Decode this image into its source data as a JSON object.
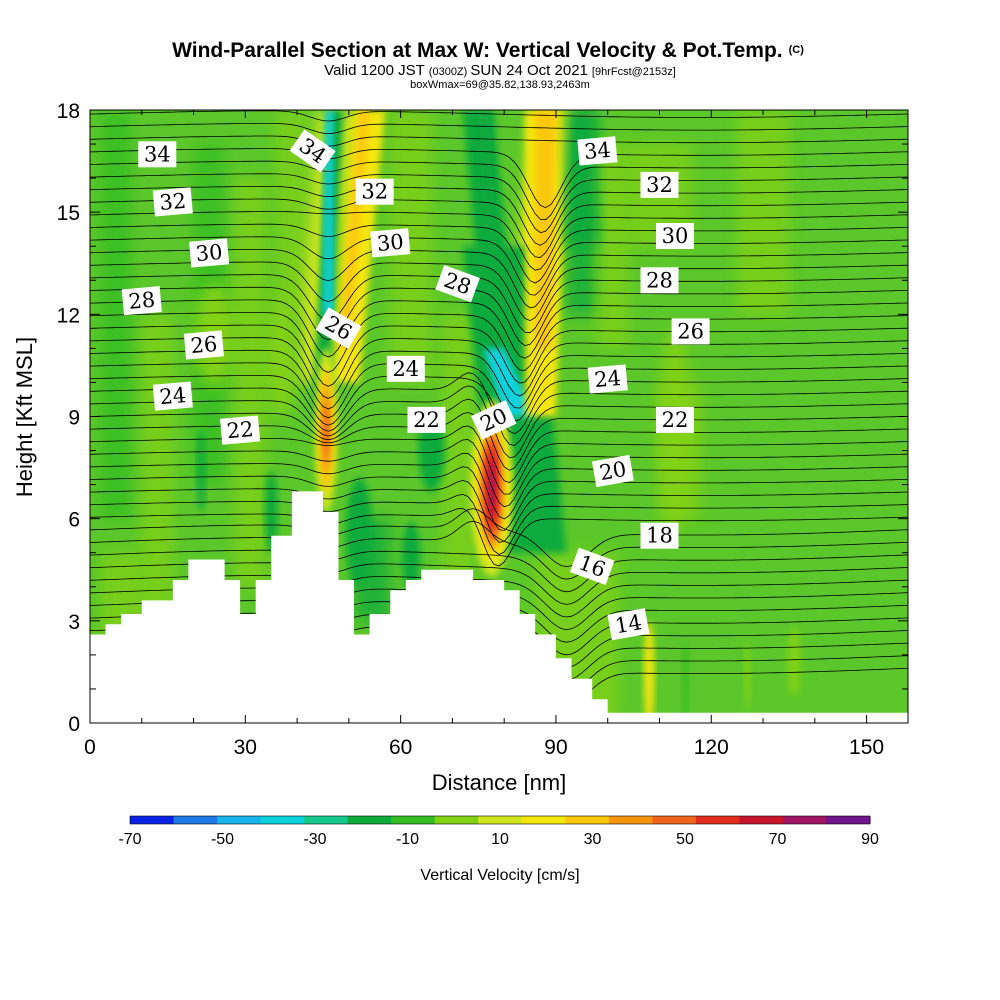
{
  "header": {
    "title": "Wind-Parallel Section at Max W: Vertical Velocity & Pot.Temp.",
    "title_suffix": "(C)",
    "subtitle_prefix": "Valid 1200 JST",
    "subtitle_zulu": "(0300Z)",
    "subtitle_date": "SUN 24 Oct 2021",
    "subtitle_fcst": "[9hrFcst@2153z]",
    "subtitle_box": "boxWmax=69@35.82,138.93,2463m"
  },
  "chart_data": {
    "type": "heatmap",
    "title": "Wind-Parallel Section at Max W: Vertical Velocity & Pot.Temp.",
    "xlabel": "Distance [nm]",
    "ylabel": "Height [Kft MSL]",
    "xlim": [
      0,
      158
    ],
    "ylim": [
      0,
      18
    ],
    "x_ticks": [
      0,
      30,
      60,
      90,
      120,
      150
    ],
    "y_ticks": [
      0,
      3,
      6,
      9,
      12,
      15,
      18
    ],
    "fill_variable": "Vertical Velocity [cm/s]",
    "contour_variable": "Potential temperature (C)",
    "colorbar": {
      "title": "Vertical Velocity [cm/s]",
      "bins": [
        -70,
        -60,
        -50,
        -40,
        -30,
        -20,
        -10,
        0,
        10,
        20,
        30,
        40,
        50,
        60,
        70,
        80,
        90
      ],
      "tick_labels": [
        "-70",
        "-50",
        "-30",
        "-10",
        "10",
        "30",
        "50",
        "70",
        "90"
      ],
      "colors": [
        "#0a22e6",
        "#1e78e6",
        "#18b4ec",
        "#0ad2dc",
        "#14c88c",
        "#0faa3c",
        "#32be23",
        "#82d214",
        "#d2e61e",
        "#f5e60a",
        "#fac80a",
        "#f5960a",
        "#f0641e",
        "#e12d1e",
        "#c8142d",
        "#a01464",
        "#6e148c"
      ]
    },
    "terrain_kft": [
      [
        0,
        2.6
      ],
      [
        3,
        2.6
      ],
      [
        3,
        2.9
      ],
      [
        6,
        2.9
      ],
      [
        6,
        3.2
      ],
      [
        10,
        3.2
      ],
      [
        10,
        3.6
      ],
      [
        16,
        3.6
      ],
      [
        16,
        4.2
      ],
      [
        19,
        4.2
      ],
      [
        19,
        4.8
      ],
      [
        26,
        4.8
      ],
      [
        26,
        4.2
      ],
      [
        29,
        4.2
      ],
      [
        29,
        3.2
      ],
      [
        32,
        3.2
      ],
      [
        32,
        4.2
      ],
      [
        35,
        4.2
      ],
      [
        35,
        5.5
      ],
      [
        39,
        5.5
      ],
      [
        39,
        6.8
      ],
      [
        45,
        6.8
      ],
      [
        45,
        6.2
      ],
      [
        48,
        6.2
      ],
      [
        48,
        4.2
      ],
      [
        51,
        4.2
      ],
      [
        51,
        2.6
      ],
      [
        54,
        2.6
      ],
      [
        54,
        3.2
      ],
      [
        58,
        3.2
      ],
      [
        58,
        3.9
      ],
      [
        61,
        3.9
      ],
      [
        61,
        4.2
      ],
      [
        64,
        4.2
      ],
      [
        64,
        4.5
      ],
      [
        74,
        4.5
      ],
      [
        74,
        4.2
      ],
      [
        80,
        4.2
      ],
      [
        80,
        3.9
      ],
      [
        83,
        3.9
      ],
      [
        83,
        3.2
      ],
      [
        86,
        3.2
      ],
      [
        86,
        2.6
      ],
      [
        90,
        2.6
      ],
      [
        90,
        1.9
      ],
      [
        93,
        1.9
      ],
      [
        93,
        1.3
      ],
      [
        97,
        1.3
      ],
      [
        97,
        0.7
      ],
      [
        100,
        0.7
      ],
      [
        100,
        0.3
      ],
      [
        158,
        0.3
      ]
    ],
    "w_features": [
      {
        "type": "updraft",
        "x": [
          74,
          82
        ],
        "y": [
          4.5,
          8.7
        ],
        "max_cm_s": 90
      },
      {
        "type": "updraft",
        "x": [
          44,
          48
        ],
        "y": [
          6.2,
          10.5
        ],
        "max_cm_s": 50
      },
      {
        "type": "updraft_band",
        "x": [
          50,
          56
        ],
        "y": [
          12,
          18
        ],
        "max_cm_s": 30
      },
      {
        "type": "updraft_band",
        "x": [
          82,
          90
        ],
        "y": [
          9,
          18
        ],
        "max_cm_s": 30
      },
      {
        "type": "downdraft_band",
        "x": [
          44,
          48
        ],
        "y": [
          14,
          18
        ],
        "min_cm_s": -40
      },
      {
        "type": "downdraft_band",
        "x": [
          78,
          90
        ],
        "y": [
          5,
          11
        ],
        "min_cm_s": -30
      },
      {
        "type": "downdraft",
        "x": [
          92,
          98
        ],
        "y": [
          15,
          18
        ],
        "min_cm_s": -20
      }
    ],
    "contour_levels": [
      14,
      16,
      18,
      20,
      22,
      24,
      26,
      28,
      30,
      32,
      34
    ],
    "contour_labels": [
      {
        "text": "34",
        "x": 13,
        "y": 16.7,
        "rot": 0
      },
      {
        "text": "34",
        "x": 43,
        "y": 16.8,
        "rot": 35
      },
      {
        "text": "34",
        "x": 98,
        "y": 16.8,
        "rot": -5
      },
      {
        "text": "32",
        "x": 16,
        "y": 15.3,
        "rot": -5
      },
      {
        "text": "32",
        "x": 55,
        "y": 15.6,
        "rot": 0
      },
      {
        "text": "32",
        "x": 110,
        "y": 15.8,
        "rot": 0
      },
      {
        "text": "30",
        "x": 23,
        "y": 13.8,
        "rot": -5
      },
      {
        "text": "30",
        "x": 58,
        "y": 14.1,
        "rot": -5
      },
      {
        "text": "30",
        "x": 113,
        "y": 14.3,
        "rot": 0
      },
      {
        "text": "28",
        "x": 10,
        "y": 12.4,
        "rot": -5
      },
      {
        "text": "28",
        "x": 71,
        "y": 12.9,
        "rot": 20
      },
      {
        "text": "28",
        "x": 110,
        "y": 13.0,
        "rot": 0
      },
      {
        "text": "26",
        "x": 22,
        "y": 11.1,
        "rot": -5
      },
      {
        "text": "26",
        "x": 48,
        "y": 11.6,
        "rot": 30
      },
      {
        "text": "26",
        "x": 116,
        "y": 11.5,
        "rot": 0
      },
      {
        "text": "24",
        "x": 16,
        "y": 9.6,
        "rot": -5
      },
      {
        "text": "24",
        "x": 61,
        "y": 10.4,
        "rot": 0
      },
      {
        "text": "24",
        "x": 100,
        "y": 10.1,
        "rot": -5
      },
      {
        "text": "22",
        "x": 29,
        "y": 8.6,
        "rot": -5
      },
      {
        "text": "22",
        "x": 65,
        "y": 8.9,
        "rot": 0
      },
      {
        "text": "22",
        "x": 113,
        "y": 8.9,
        "rot": 0
      },
      {
        "text": "20",
        "x": 78,
        "y": 8.9,
        "rot": -25
      },
      {
        "text": "20",
        "x": 101,
        "y": 7.4,
        "rot": -10
      },
      {
        "text": "18",
        "x": 110,
        "y": 5.5,
        "rot": 0
      },
      {
        "text": "16",
        "x": 97,
        "y": 4.6,
        "rot": 20
      },
      {
        "text": "14",
        "x": 104,
        "y": 2.9,
        "rot": -10
      }
    ]
  }
}
